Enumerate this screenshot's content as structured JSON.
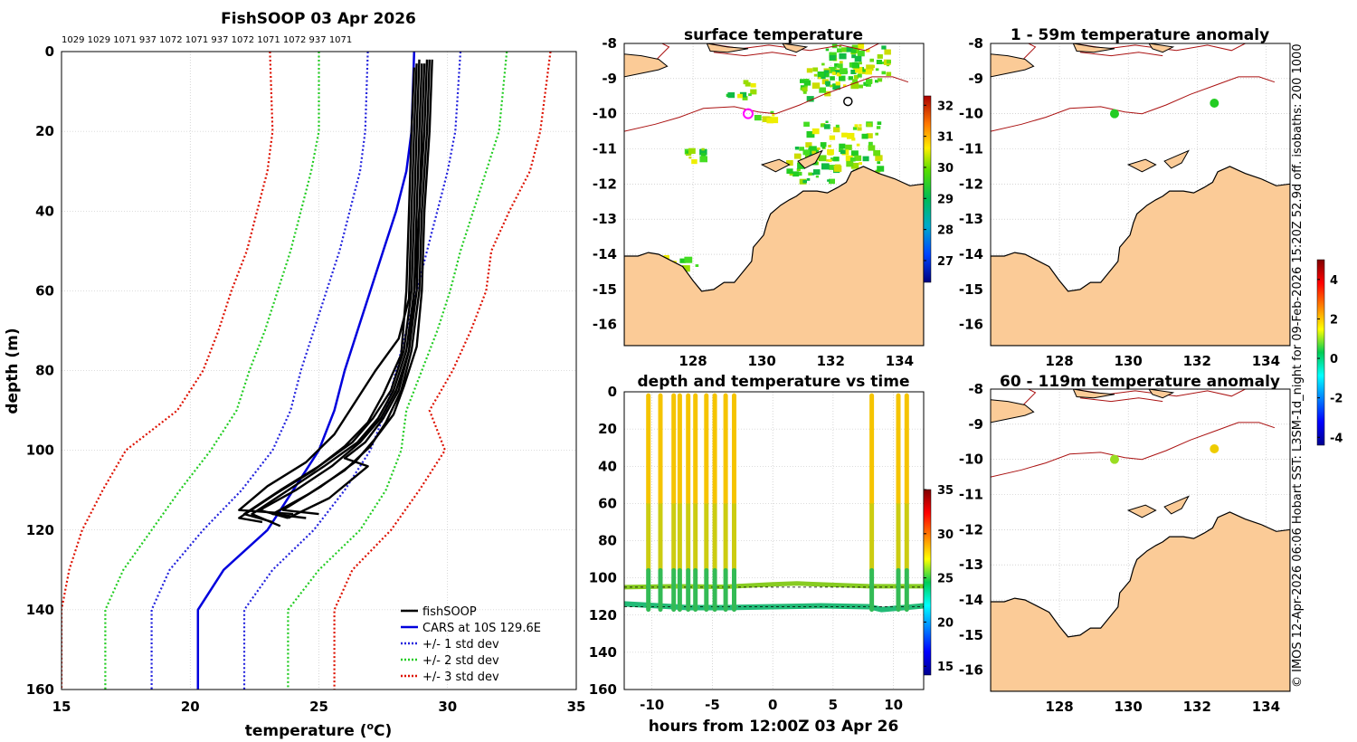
{
  "chart_data": [
    {
      "type": "line",
      "title": "FishSOOP 03 Apr 2026",
      "xlabel": "temperature (",
      "xlabel_unit": "o",
      "xlabel_end": "C)",
      "ylabel": "depth (m)",
      "xlim": [
        15,
        35
      ],
      "ylim": [
        0,
        160
      ],
      "xticks": [
        15,
        20,
        25,
        30,
        35
      ],
      "yticks": [
        0,
        20,
        40,
        60,
        80,
        100,
        120,
        140,
        160
      ],
      "top_labels": "1029 1029 1071 937 1072 1071 937 1072 1071 1072 937 1071",
      "legend": [
        "fishSOOP",
        "CARS at 10S 129.6E",
        "+/- 1 std dev",
        "+/- 2 std dev",
        "+/- 3 std dev"
      ],
      "colors": {
        "fish": "#000000",
        "cars": "#0000dd",
        "sd1": "#2222dd",
        "sd2": "#22cc22",
        "sd3": "#dd1100"
      },
      "series": [
        {
          "name": "CARS",
          "depth": [
            0,
            20,
            30,
            40,
            50,
            60,
            70,
            80,
            90,
            100,
            110,
            120,
            130,
            140,
            160
          ],
          "temp": [
            28.7,
            28.6,
            28.4,
            28.0,
            27.5,
            27.0,
            26.5,
            26.0,
            25.6,
            25.0,
            24.0,
            23.0,
            21.3,
            20.3,
            20.3
          ]
        },
        {
          "name": "sd1_lo",
          "depth": [
            0,
            20,
            30,
            40,
            50,
            60,
            70,
            80,
            90,
            100,
            110,
            120,
            130,
            140,
            160
          ],
          "temp": [
            26.9,
            26.8,
            26.6,
            26.2,
            25.8,
            25.3,
            24.8,
            24.3,
            23.9,
            23.2,
            22.0,
            20.5,
            19.2,
            18.5,
            18.5
          ]
        },
        {
          "name": "sd1_hi",
          "depth": [
            0,
            20,
            30,
            40,
            50,
            60,
            70,
            80,
            90,
            100,
            110,
            120,
            130,
            140,
            160
          ],
          "temp": [
            30.5,
            30.3,
            30.0,
            29.6,
            29.2,
            28.8,
            28.4,
            28.0,
            27.6,
            27.0,
            26.0,
            24.8,
            23.2,
            22.1,
            22.1
          ]
        },
        {
          "name": "sd2_lo",
          "depth": [
            0,
            20,
            30,
            40,
            50,
            60,
            70,
            80,
            90,
            100,
            110,
            120,
            130,
            140,
            160
          ],
          "temp": [
            25.0,
            25.0,
            24.7,
            24.3,
            23.9,
            23.4,
            22.9,
            22.3,
            21.8,
            20.8,
            19.6,
            18.5,
            17.4,
            16.7,
            16.7
          ]
        },
        {
          "name": "sd2_hi",
          "depth": [
            0,
            20,
            30,
            40,
            50,
            60,
            70,
            80,
            90,
            100,
            110,
            120,
            130,
            140,
            160
          ],
          "temp": [
            32.3,
            32.0,
            31.5,
            31.0,
            30.5,
            30.1,
            29.6,
            29.0,
            28.4,
            28.2,
            27.6,
            26.6,
            25.0,
            23.8,
            23.8
          ]
        },
        {
          "name": "sd3_lo",
          "depth": [
            0,
            20,
            30,
            40,
            50,
            60,
            70,
            80,
            90,
            100,
            110,
            120,
            130,
            140,
            160
          ],
          "temp": [
            23.1,
            23.2,
            23.0,
            22.6,
            22.2,
            21.6,
            21.1,
            20.5,
            19.5,
            17.5,
            16.6,
            15.8,
            15.3,
            15.0,
            15.0
          ]
        },
        {
          "name": "sd3_hi",
          "depth": [
            0,
            20,
            30,
            40,
            50,
            60,
            70,
            80,
            90,
            100,
            110,
            120,
            130,
            140,
            160
          ],
          "temp": [
            34.0,
            33.6,
            33.2,
            32.4,
            31.7,
            31.5,
            30.9,
            30.2,
            29.3,
            29.9,
            28.9,
            27.8,
            26.3,
            25.6,
            25.6
          ]
        }
      ],
      "fish_profiles": [
        {
          "temp": [
            28.9,
            28.8,
            28.7,
            28.6,
            28.3,
            27.8,
            27.1,
            26.3,
            25.0,
            23.5,
            22.1,
            23.2
          ],
          "depth": [
            2,
            20,
            40,
            60,
            75,
            85,
            92,
            98,
            104,
            110,
            116,
            118
          ]
        },
        {
          "temp": [
            29.1,
            29.0,
            28.9,
            28.8,
            28.5,
            28.0,
            27.4,
            26.6,
            25.5,
            24.1,
            22.7,
            23.8
          ],
          "depth": [
            3,
            20,
            40,
            60,
            75,
            85,
            92,
            98,
            104,
            110,
            115,
            117
          ]
        },
        {
          "temp": [
            29.3,
            29.2,
            29.0,
            28.9,
            28.6,
            28.2,
            27.6,
            27.0,
            26.0,
            24.6,
            23.2,
            24.5
          ],
          "depth": [
            2,
            20,
            40,
            60,
            75,
            85,
            93,
            99,
            105,
            111,
            116,
            117
          ]
        },
        {
          "temp": [
            28.7,
            28.6,
            28.5,
            28.4,
            28.2,
            27.5,
            26.9,
            26.0,
            24.8,
            23.3,
            21.9,
            22.8
          ],
          "depth": [
            4,
            20,
            40,
            60,
            76,
            86,
            93,
            99,
            105,
            111,
            117,
            118
          ]
        },
        {
          "temp": [
            29.4,
            29.3,
            29.1,
            29.0,
            28.8,
            28.3,
            27.9,
            27.2,
            26.4,
            25.1,
            23.6,
            25.0
          ],
          "depth": [
            2,
            20,
            40,
            60,
            74,
            84,
            91,
            97,
            103,
            109,
            115,
            116
          ]
        },
        {
          "temp": [
            29.0,
            28.9,
            28.8,
            28.7,
            28.4,
            27.9,
            27.3,
            26.5,
            25.2,
            23.8,
            22.4,
            23.5
          ],
          "depth": [
            3,
            20,
            40,
            60,
            75,
            85,
            92,
            98,
            104,
            110,
            116,
            119
          ]
        },
        {
          "temp": [
            28.8,
            28.7,
            28.6,
            28.5,
            28.1,
            27.2,
            26.4,
            25.6,
            24.5,
            23.0,
            21.9,
            24.0
          ],
          "depth": [
            3,
            20,
            40,
            62,
            72,
            80,
            88,
            96,
            103,
            109,
            115,
            116
          ]
        },
        {
          "temp": [
            29.2,
            29.1,
            28.9,
            28.7,
            28.5,
            28.1,
            27.5,
            26.8,
            26.0,
            26.9,
            25.4,
            23.8
          ],
          "depth": [
            2,
            20,
            40,
            60,
            75,
            85,
            92,
            98,
            102,
            104,
            112,
            117
          ]
        }
      ]
    },
    {
      "type": "heatmap",
      "title": "surface temperature",
      "xticks": [
        128,
        130,
        132,
        134
      ],
      "yticks": [
        -8,
        -9,
        -10,
        -11,
        -12,
        -13,
        -14,
        -15,
        -16
      ],
      "xlim": [
        126.0,
        134.7
      ],
      "ylim": [
        -16.6,
        -8.0
      ],
      "colorbar_ticks": [
        27,
        28,
        29,
        30,
        31,
        32
      ],
      "colorbar_range": [
        26.3,
        32.3
      ]
    },
    {
      "type": "scatter",
      "title": "1 - 59m temperature anomaly",
      "xticks": [
        128,
        130,
        132,
        134
      ],
      "yticks": [
        -8,
        -9,
        -10,
        -11,
        -12,
        -13,
        -14,
        -15,
        -16
      ],
      "points": [
        {
          "lon": 129.6,
          "lat": -10.0,
          "color": "#22cc22"
        },
        {
          "lon": 132.5,
          "lat": -9.7,
          "color": "#22cc22"
        }
      ]
    },
    {
      "type": "scatter",
      "title": "depth and temperature vs time",
      "xlabel": "hours from 12:00Z 03 Apr 26",
      "xticks": [
        -10,
        -5,
        0,
        5,
        10
      ],
      "yticks": [
        0,
        20,
        40,
        60,
        80,
        100,
        120,
        140,
        160
      ],
      "xlim": [
        -12.3,
        12.5
      ],
      "ylim": [
        0,
        160
      ],
      "casts": [
        -10.3,
        -9.3,
        -8.2,
        -7.7,
        -7.0,
        -6.4,
        -5.5,
        -4.8,
        -3.9,
        -3.2,
        8.2,
        10.4,
        11.1
      ],
      "colorbar_ticks": [
        15,
        20,
        25,
        30,
        35
      ],
      "colorbar_range": [
        14.0,
        35.0
      ]
    },
    {
      "type": "scatter",
      "title": "60 - 119m temperature anomaly",
      "xticks": [
        128,
        130,
        132,
        134
      ],
      "yticks": [
        -8,
        -9,
        -10,
        -11,
        -12,
        -13,
        -14,
        -15,
        -16
      ],
      "points": [
        {
          "lon": 129.6,
          "lat": -10.0,
          "color": "#99dd22"
        },
        {
          "lon": 132.5,
          "lat": -9.7,
          "color": "#eecc00"
        }
      ],
      "colorbar_ticks": [
        -4,
        -2,
        0,
        2,
        4
      ],
      "colorbar_range": [
        -4.4,
        5.0
      ]
    }
  ],
  "side_text": "© IMOS 12-Apr-2026 06:06 Hobart SST: L3SM-1d_night for 09-Feb-2026 15:20Z 52.9d off. isobaths: 200  1000"
}
